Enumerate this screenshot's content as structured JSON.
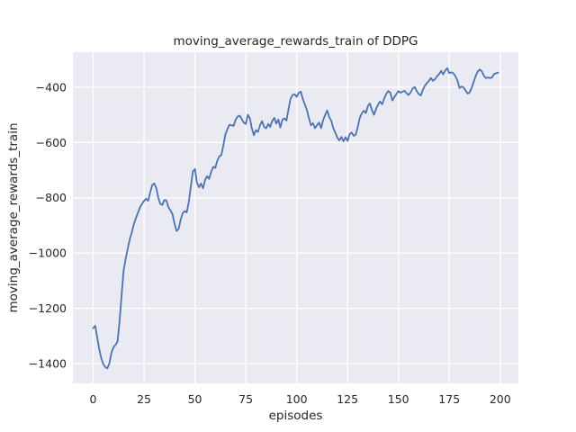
{
  "figure": {
    "background": "#ffffff"
  },
  "chart_data": {
    "type": "line",
    "title": "moving_average_rewards_train of DDPG",
    "xlabel": "episodes",
    "ylabel": "moving_average_rewards_train",
    "grid": true,
    "legend_position": "none",
    "plot_bg": "#eaeaf2",
    "grid_color": "#ffffff",
    "line_color": "#4c72b0",
    "text_color": "#262626",
    "x_is_index": true,
    "n_points": 200,
    "xlim": [
      -9.95,
      208.95
    ],
    "ylim": [
      -1471.5,
      -273.5
    ],
    "xticks": [
      0,
      25,
      50,
      75,
      100,
      125,
      150,
      175,
      200
    ],
    "yticks": [
      -400,
      -600,
      -800,
      -1000,
      -1200,
      -1400
    ],
    "values": [
      -1272,
      -1263,
      -1305,
      -1348,
      -1380,
      -1402,
      -1413,
      -1417,
      -1398,
      -1360,
      -1341,
      -1332,
      -1320,
      -1245,
      -1150,
      -1062,
      -1020,
      -985,
      -950,
      -925,
      -896,
      -874,
      -855,
      -835,
      -822,
      -812,
      -803,
      -811,
      -782,
      -754,
      -748,
      -764,
      -800,
      -822,
      -826,
      -808,
      -810,
      -835,
      -845,
      -860,
      -895,
      -920,
      -913,
      -880,
      -856,
      -848,
      -853,
      -815,
      -760,
      -705,
      -696,
      -745,
      -762,
      -748,
      -766,
      -735,
      -722,
      -732,
      -706,
      -688,
      -692,
      -666,
      -650,
      -645,
      -610,
      -570,
      -552,
      -536,
      -538,
      -540,
      -518,
      -506,
      -503,
      -515,
      -528,
      -533,
      -500,
      -512,
      -550,
      -574,
      -555,
      -562,
      -538,
      -523,
      -543,
      -549,
      -533,
      -544,
      -522,
      -511,
      -532,
      -517,
      -546,
      -517,
      -513,
      -521,
      -479,
      -442,
      -428,
      -426,
      -435,
      -421,
      -416,
      -442,
      -462,
      -482,
      -512,
      -538,
      -530,
      -548,
      -538,
      -528,
      -548,
      -520,
      -500,
      -484,
      -508,
      -522,
      -548,
      -565,
      -583,
      -593,
      -580,
      -596,
      -581,
      -594,
      -571,
      -564,
      -576,
      -572,
      -545,
      -511,
      -495,
      -485,
      -494,
      -468,
      -459,
      -483,
      -500,
      -479,
      -463,
      -452,
      -462,
      -441,
      -425,
      -414,
      -420,
      -448,
      -436,
      -425,
      -414,
      -420,
      -416,
      -413,
      -422,
      -428,
      -419,
      -405,
      -399,
      -414,
      -425,
      -430,
      -410,
      -395,
      -385,
      -377,
      -367,
      -377,
      -371,
      -360,
      -353,
      -341,
      -354,
      -340,
      -331,
      -349,
      -346,
      -350,
      -360,
      -376,
      -403,
      -398,
      -401,
      -412,
      -423,
      -419,
      -402,
      -380,
      -359,
      -343,
      -336,
      -343,
      -359,
      -367,
      -365,
      -367,
      -365,
      -352,
      -350,
      -347
    ]
  }
}
